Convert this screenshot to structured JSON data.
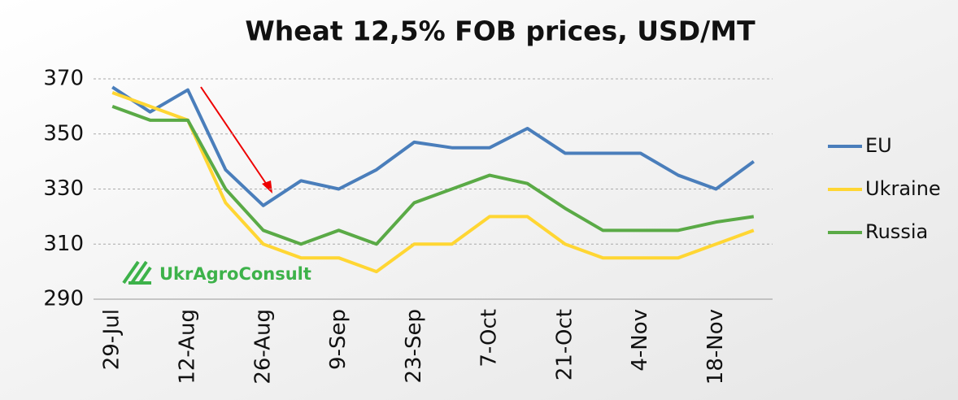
{
  "chart_data": {
    "type": "line",
    "title": "Wheat 12,5% FOB prices, USD/MT",
    "logo": "UkrAgroConsult",
    "categories": [
      "29-Jul",
      null,
      "12-Aug",
      null,
      "26-Aug",
      null,
      "9-Sep",
      null,
      "23-Sep",
      null,
      "7-Oct",
      null,
      "21-Oct",
      null,
      "4-Nov",
      null,
      "18-Nov",
      null
    ],
    "series": [
      {
        "name": "EU",
        "color": "#4a7ebb",
        "values": [
          367,
          358,
          366,
          337,
          324,
          333,
          330,
          337,
          347,
          345,
          345,
          352,
          343,
          343,
          343,
          335,
          330,
          340
        ]
      },
      {
        "name": "Ukraine",
        "color": "#ffd633",
        "values": [
          365,
          360,
          355,
          325,
          310,
          305,
          305,
          300,
          310,
          310,
          320,
          320,
          310,
          305,
          305,
          305,
          310,
          315
        ]
      },
      {
        "name": "Russia",
        "color": "#5aaa46",
        "values": [
          360,
          355,
          355,
          330,
          315,
          310,
          315,
          310,
          325,
          330,
          335,
          332,
          323,
          315,
          315,
          315,
          318,
          320
        ]
      }
    ],
    "ylim": [
      290,
      370
    ],
    "yticks": [
      290,
      310,
      330,
      350,
      370
    ],
    "grid": true,
    "legend": "right"
  }
}
